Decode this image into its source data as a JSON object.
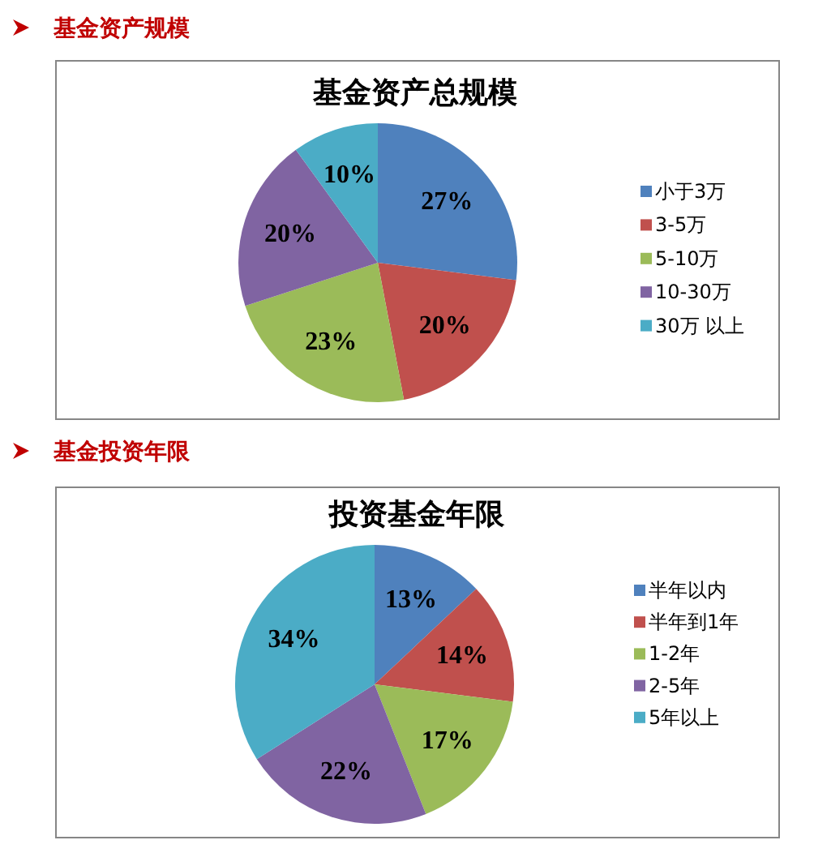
{
  "chart_data": [
    {
      "type": "pie",
      "title": "基金资产总规模",
      "annotations": [
        "基金资产规模"
      ],
      "categories": [
        "小于3万",
        "3-5万",
        "5-10万",
        "10-30万",
        "30万 以上"
      ],
      "values": [
        27,
        20,
        23,
        20,
        10
      ],
      "colors": [
        "#4f81bd",
        "#c0504d",
        "#9bbb59",
        "#8064a2",
        "#4bacc6"
      ],
      "value_labels": [
        "27%",
        "20%",
        "23%",
        "20%",
        "10%"
      ],
      "legend": "right"
    },
    {
      "type": "pie",
      "title": "投资基金年限",
      "annotations": [
        "基金投资年限"
      ],
      "categories": [
        "半年以内",
        "半年到1年",
        "1-2年",
        "2-5年",
        "5年以上"
      ],
      "values": [
        13,
        14,
        17,
        22,
        34
      ],
      "colors": [
        "#4f81bd",
        "#c0504d",
        "#9bbb59",
        "#8064a2",
        "#4bacc6"
      ],
      "value_labels": [
        "13%",
        "14%",
        "17%",
        "22%",
        "34%"
      ],
      "legend": "right"
    }
  ]
}
